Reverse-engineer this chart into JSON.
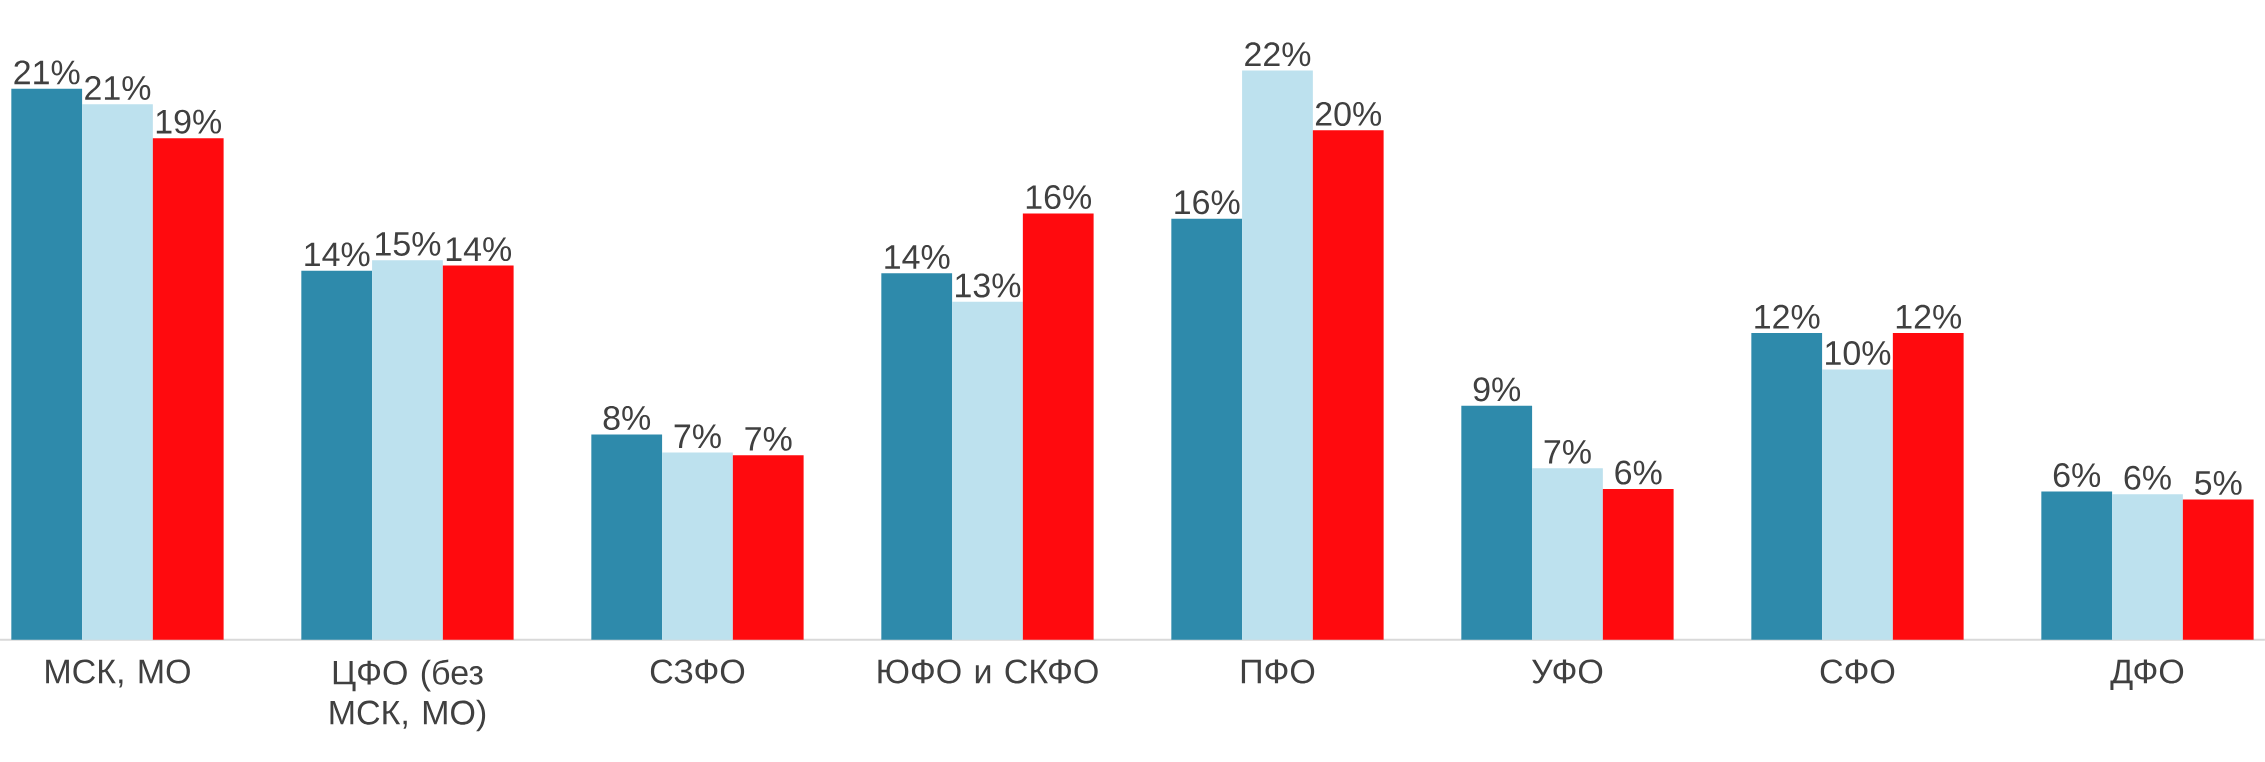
{
  "chart_data": {
    "type": "bar",
    "categories": [
      "МСК, МО",
      "ЦФО (без МСК, МО)",
      "СЗФО",
      "ЮФО и СКФО",
      "ПФО",
      "УФО",
      "СФО",
      "ДФО"
    ],
    "series": [
      {
        "color": "#2e8aab",
        "values": [
          21.2,
          14.2,
          7.9,
          14.1,
          16.2,
          9.0,
          11.8,
          5.7
        ],
        "value_labels": [
          "21%",
          "14%",
          "8%",
          "14%",
          "16%",
          "9%",
          "12%",
          "6%"
        ]
      },
      {
        "color": "#bde1ee",
        "values": [
          20.6,
          14.6,
          7.2,
          13.0,
          21.9,
          6.6,
          10.4,
          5.6
        ],
        "value_labels": [
          "21%",
          "15%",
          "7%",
          "13%",
          "22%",
          "7%",
          "10%",
          "6%"
        ]
      },
      {
        "color": "#ff0a0e",
        "values": [
          19.3,
          14.4,
          7.1,
          16.4,
          19.6,
          5.8,
          11.8,
          5.4
        ],
        "value_labels": [
          "19%",
          "14%",
          "7%",
          "16%",
          "20%",
          "6%",
          "12%",
          "5%"
        ]
      }
    ]
  }
}
